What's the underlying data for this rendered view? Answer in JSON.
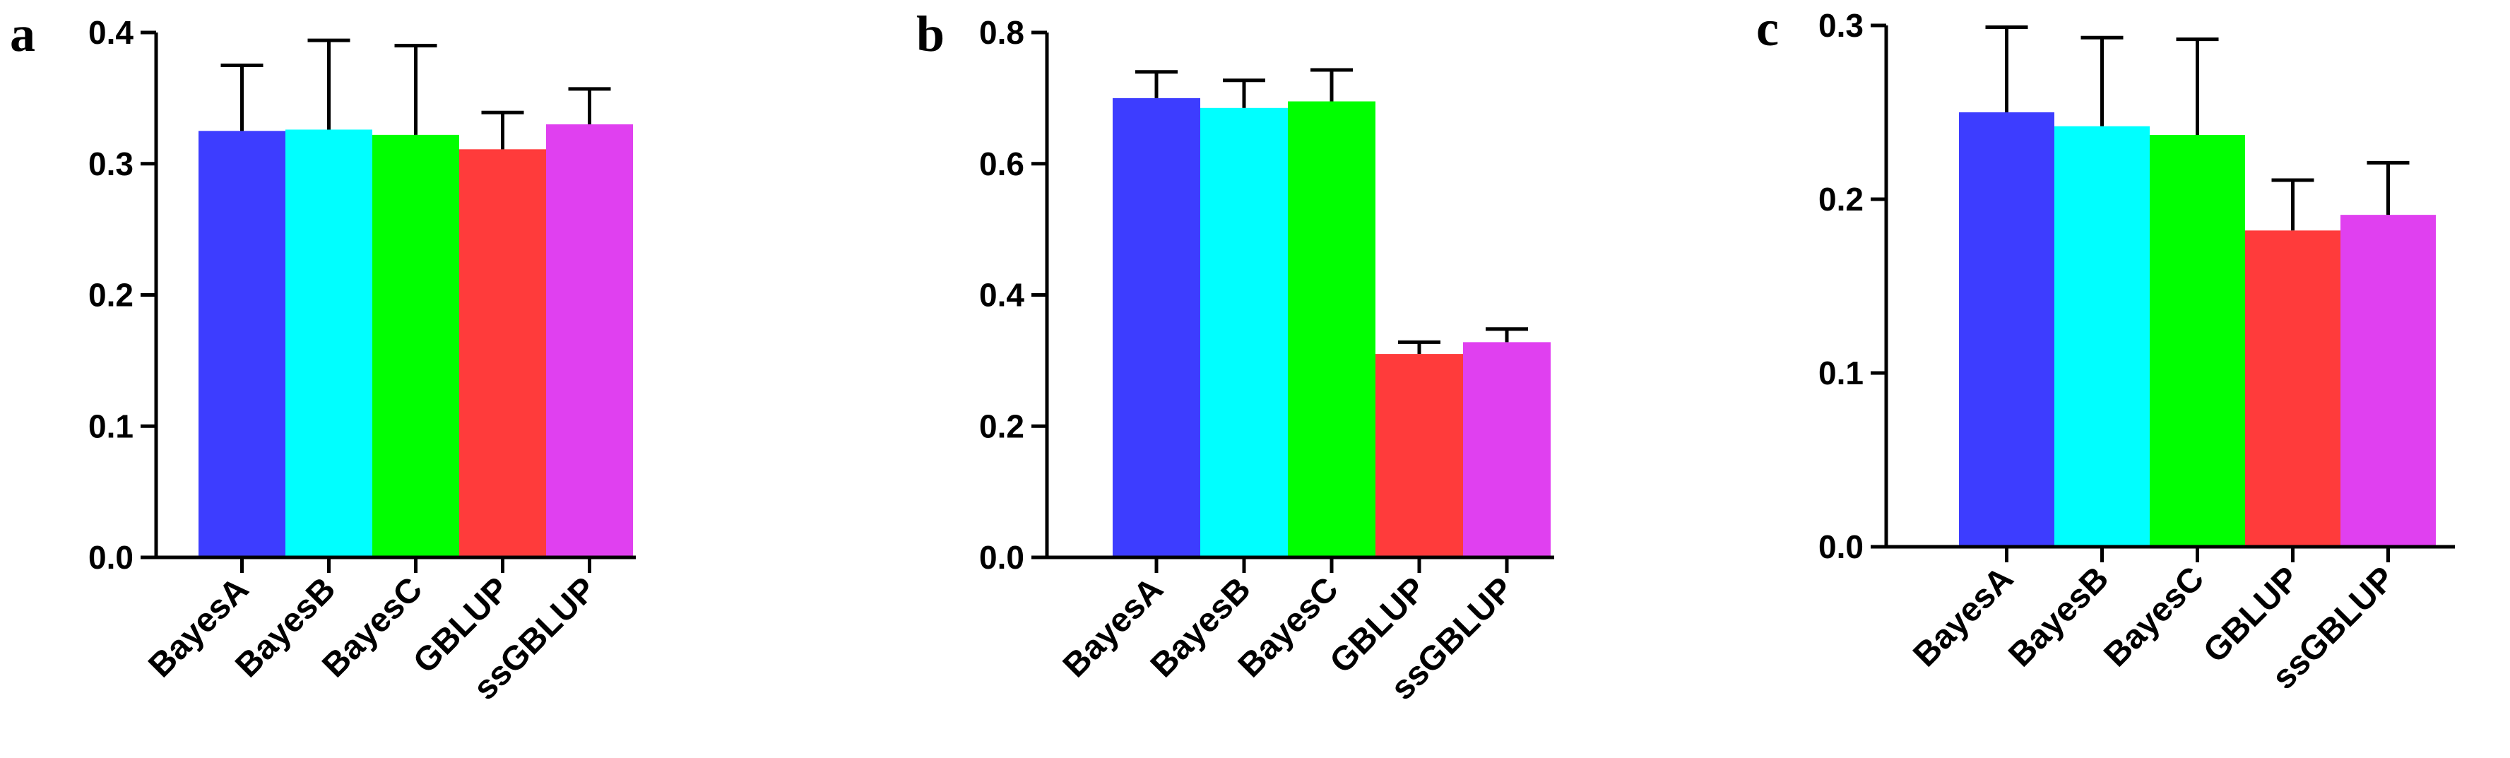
{
  "chart_data": [
    {
      "panel": "a",
      "type": "bar",
      "categories": [
        "BayesA",
        "BayesB",
        "BayesC",
        "GBLUP",
        "ssGBLUP"
      ],
      "values": [
        0.325,
        0.326,
        0.322,
        0.311,
        0.33
      ],
      "errors": [
        0.05,
        0.068,
        0.068,
        0.028,
        0.027
      ],
      "colors": [
        "#3d3dff",
        "#00ffff",
        "#00ff00",
        "#ff3b3b",
        "#e040f0"
      ],
      "ylim": [
        0,
        0.4
      ],
      "yticks": [
        "0.0",
        "0.1",
        "0.2",
        "0.3",
        "0.4"
      ],
      "title": "",
      "xlabel": "",
      "ylabel": "",
      "grid": false
    },
    {
      "panel": "b",
      "type": "bar",
      "categories": [
        "BayesA",
        "BayesB",
        "BayesC",
        "GBLUP",
        "ssGBLUP"
      ],
      "values": [
        0.7,
        0.685,
        0.695,
        0.31,
        0.328
      ],
      "errors": [
        0.04,
        0.042,
        0.048,
        0.018,
        0.02
      ],
      "colors": [
        "#3d3dff",
        "#00ffff",
        "#00ff00",
        "#ff3b3b",
        "#e040f0"
      ],
      "ylim": [
        0,
        0.8
      ],
      "yticks": [
        "0.0",
        "0.2",
        "0.4",
        "0.6",
        "0.8"
      ],
      "title": "",
      "xlabel": "",
      "ylabel": "",
      "grid": false
    },
    {
      "panel": "c",
      "type": "bar",
      "categories": [
        "BayesA",
        "BayesB",
        "BayesC",
        "GBLUP",
        "ssGBLUP"
      ],
      "values": [
        0.25,
        0.242,
        0.237,
        0.182,
        0.191
      ],
      "errors": [
        0.049,
        0.051,
        0.055,
        0.029,
        0.03
      ],
      "colors": [
        "#3d3dff",
        "#00ffff",
        "#00ff00",
        "#ff3b3b",
        "#e040f0"
      ],
      "ylim": [
        0,
        0.3
      ],
      "yticks": [
        "0.0",
        "0.1",
        "0.2",
        "0.3"
      ],
      "title": "",
      "xlabel": "",
      "ylabel": "",
      "grid": false
    }
  ]
}
